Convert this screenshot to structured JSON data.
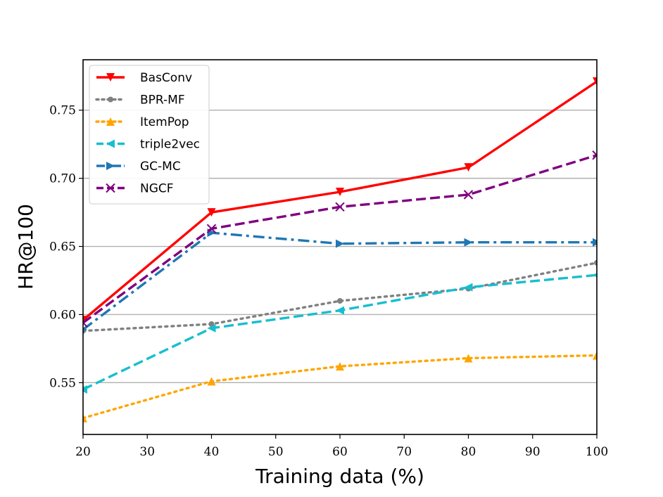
{
  "chart_data": {
    "type": "line",
    "title": "",
    "xlabel": "Training data (%)",
    "ylabel": "HR@100",
    "xlim": [
      20,
      100
    ],
    "ylim": [
      0.512,
      0.787
    ],
    "xticks": [
      20,
      30,
      40,
      50,
      60,
      70,
      80,
      90,
      100
    ],
    "xtick_labels": [
      "20",
      "30",
      "40",
      "50",
      "60",
      "70",
      "80",
      "90",
      "100"
    ],
    "yticks": [
      0.55,
      0.6,
      0.65,
      0.7,
      0.75
    ],
    "ytick_labels": [
      "0.55",
      "0.60",
      "0.65",
      "0.70",
      "0.75"
    ],
    "grid": "horizontal",
    "legend_position": "top-left",
    "x": [
      20,
      40,
      60,
      80,
      100
    ],
    "series": [
      {
        "name": "BasConv",
        "color": "#ff0000",
        "dash": "solid",
        "marker": "triangle-down",
        "values": [
          0.596,
          0.675,
          0.69,
          0.708,
          0.771
        ]
      },
      {
        "name": "BPR-MF",
        "color": "#808080",
        "dash": "dotted",
        "marker": "circle",
        "values": [
          0.588,
          0.593,
          0.61,
          0.619,
          0.638
        ]
      },
      {
        "name": "ItemPop",
        "color": "#ffa500",
        "dash": "dotted",
        "marker": "triangle-up",
        "values": [
          0.524,
          0.551,
          0.562,
          0.568,
          0.57
        ]
      },
      {
        "name": "triple2vec",
        "color": "#17becf",
        "dash": "dashed",
        "marker": "triangle-left",
        "values": [
          0.545,
          0.59,
          0.603,
          0.62,
          0.629
        ]
      },
      {
        "name": "GC-MC",
        "color": "#1f77b4",
        "dash": "dashdot",
        "marker": "triangle-right",
        "values": [
          0.589,
          0.66,
          0.652,
          0.653,
          0.653
        ]
      },
      {
        "name": "NGCF",
        "color": "#800080",
        "dash": "dashed",
        "marker": "x",
        "values": [
          0.594,
          0.663,
          0.679,
          0.688,
          0.717
        ]
      }
    ]
  }
}
